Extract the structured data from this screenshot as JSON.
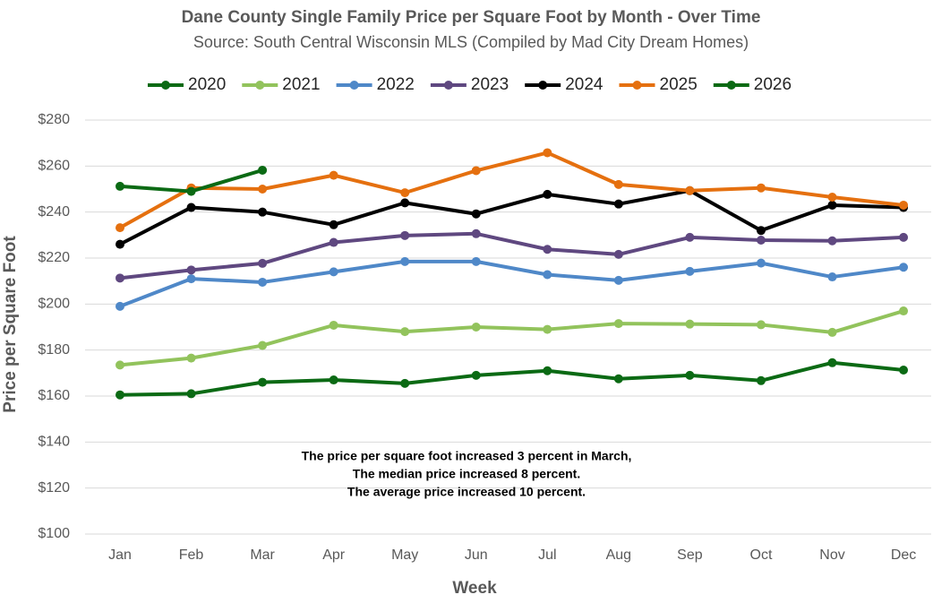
{
  "chart_data": {
    "type": "line",
    "title": "Dane County Single Family Price per Square Foot by Month - Over Time",
    "subtitle": "Source: South Central Wisconsin MLS (Compiled by Mad City Dream Homes)",
    "x_label": "Week",
    "y_label": "Price per Square Foot",
    "annotation": [
      "The price per square foot increased 3 percent in March,",
      "The median price increased 8 percent.",
      "The average price increased 10 percent."
    ],
    "categories": [
      "Jan",
      "Feb",
      "Mar",
      "Apr",
      "May",
      "Jun",
      "Jul",
      "Aug",
      "Sep",
      "Oct",
      "Nov",
      "Dec"
    ],
    "ylim": [
      100,
      280
    ],
    "yticks": [
      {
        "value": 100,
        "label": "$100"
      },
      {
        "value": 120,
        "label": "$120"
      },
      {
        "value": 140,
        "label": "$140"
      },
      {
        "value": 160,
        "label": "$160"
      },
      {
        "value": 180,
        "label": "$180"
      },
      {
        "value": 200,
        "label": "$200"
      },
      {
        "value": 220,
        "label": "$220"
      },
      {
        "value": 240,
        "label": "$240"
      },
      {
        "value": 260,
        "label": "$260"
      },
      {
        "value": 280,
        "label": "$280"
      }
    ],
    "grid": true,
    "legend": "top",
    "series": [
      {
        "name": "2020",
        "color": "#0b6a14",
        "values": [
          160.5,
          161,
          166,
          167,
          165.5,
          169,
          171,
          167.5,
          169,
          166.7,
          174.5,
          171.3
        ]
      },
      {
        "name": "2021",
        "color": "#92c35c",
        "values": [
          173.5,
          176.5,
          182,
          190.8,
          188,
          190,
          189,
          191.5,
          191.3,
          191,
          187.7,
          197
        ]
      },
      {
        "name": "2022",
        "color": "#4f88c8",
        "values": [
          199,
          211,
          209.5,
          214,
          218.5,
          218.5,
          212.8,
          210.3,
          214.2,
          217.8,
          211.8,
          216
        ]
      },
      {
        "name": "2023",
        "color": "#5f4880",
        "values": [
          211.3,
          214.8,
          217.7,
          226.8,
          229.8,
          230.6,
          223.8,
          221.6,
          229,
          227.8,
          227.5,
          229
        ]
      },
      {
        "name": "2024",
        "color": "#000000",
        "values": [
          226,
          242,
          240,
          234.5,
          244,
          239.2,
          247.7,
          243.5,
          249.3,
          232,
          243,
          242
        ]
      },
      {
        "name": "2025",
        "color": "#e5700f",
        "values": [
          233.2,
          250.5,
          250,
          256,
          248.4,
          258,
          265.8,
          252,
          249.3,
          250.5,
          246.5,
          243
        ]
      },
      {
        "name": "2026",
        "color": "#0b6a14",
        "values": [
          251.2,
          249,
          258.2,
          null,
          null,
          null,
          null,
          null,
          null,
          null,
          null,
          null
        ]
      }
    ]
  }
}
